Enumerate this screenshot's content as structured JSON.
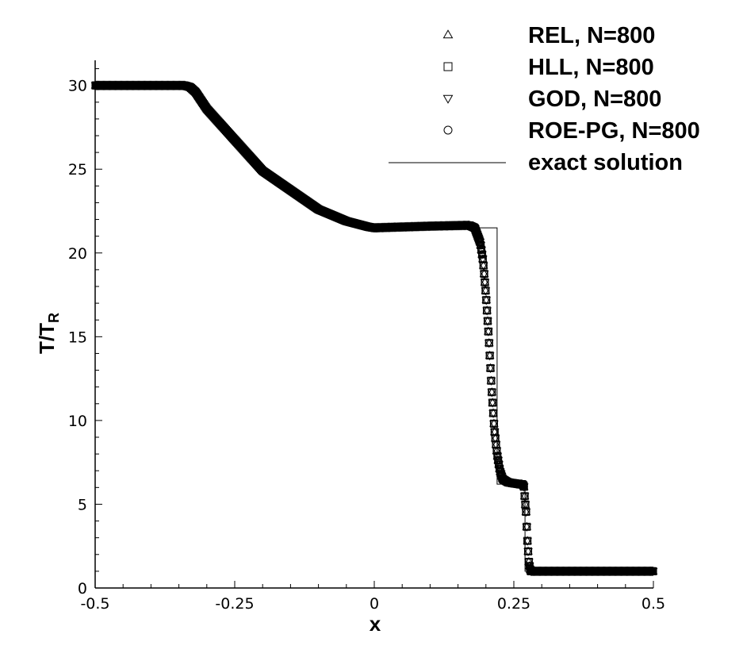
{
  "chart_data": {
    "type": "scatter",
    "xlabel": "x",
    "ylabel": {
      "main": "T/T",
      "subscript": "R"
    },
    "xlim": [
      -0.5,
      0.5
    ],
    "ylim": [
      0,
      31.5
    ],
    "x_ticks": [
      -0.5,
      -0.25,
      0,
      0.25,
      0.5
    ],
    "x_tick_labels": [
      "-0.5",
      "-0.25",
      "0",
      "0.25",
      "0.5"
    ],
    "y_ticks": [
      0,
      5,
      10,
      15,
      20,
      25,
      30
    ],
    "y_tick_labels": [
      "0",
      "5",
      "10",
      "15",
      "20",
      "25",
      "30"
    ],
    "grid": false,
    "legend_position": "top-right",
    "series": [
      {
        "name": "REL, N=800",
        "marker": "triangle-up"
      },
      {
        "name": "HLL, N=800",
        "marker": "square"
      },
      {
        "name": "GOD, N=800",
        "marker": "triangle-down"
      },
      {
        "name": "ROE-PG, N=800",
        "marker": "circle"
      },
      {
        "name": "exact solution",
        "marker": "line"
      }
    ],
    "numerical_profile": [
      [
        -0.5,
        30
      ],
      [
        -0.34,
        30
      ],
      [
        -0.33,
        29.9
      ],
      [
        -0.32,
        29.6
      ],
      [
        -0.3,
        28.6
      ],
      [
        -0.2,
        24.9
      ],
      [
        -0.1,
        22.6
      ],
      [
        -0.05,
        21.9
      ],
      [
        -0.01,
        21.55
      ],
      [
        0.0,
        21.5
      ],
      [
        0.1,
        21.6
      ],
      [
        0.17,
        21.65
      ],
      [
        0.18,
        21.5
      ],
      [
        0.19,
        20.6
      ],
      [
        0.195,
        19.5
      ],
      [
        0.2,
        17.5
      ],
      [
        0.205,
        15.0
      ],
      [
        0.21,
        12.0
      ],
      [
        0.215,
        9.5
      ],
      [
        0.22,
        8.0
      ],
      [
        0.225,
        7.0
      ],
      [
        0.23,
        6.5
      ],
      [
        0.24,
        6.3
      ],
      [
        0.26,
        6.2
      ],
      [
        0.265,
        6.2
      ],
      [
        0.268,
        6.1
      ],
      [
        0.27,
        5.2
      ],
      [
        0.272,
        4.5
      ],
      [
        0.274,
        3.0
      ],
      [
        0.277,
        1.5
      ],
      [
        0.28,
        1.0
      ],
      [
        0.3,
        1.0
      ],
      [
        0.5,
        1.0
      ]
    ],
    "exact_solution": [
      [
        -0.5,
        30
      ],
      [
        -0.33,
        30
      ],
      [
        -0.3,
        28.6
      ],
      [
        -0.2,
        24.9
      ],
      [
        -0.1,
        22.6
      ],
      [
        -0.05,
        21.9
      ],
      [
        -0.01,
        21.6
      ],
      [
        0.0,
        21.5
      ],
      [
        0.22,
        21.5
      ],
      [
        0.22,
        6.2
      ],
      [
        0.27,
        6.2
      ],
      [
        0.27,
        1.0
      ],
      [
        0.5,
        1.0
      ]
    ]
  }
}
